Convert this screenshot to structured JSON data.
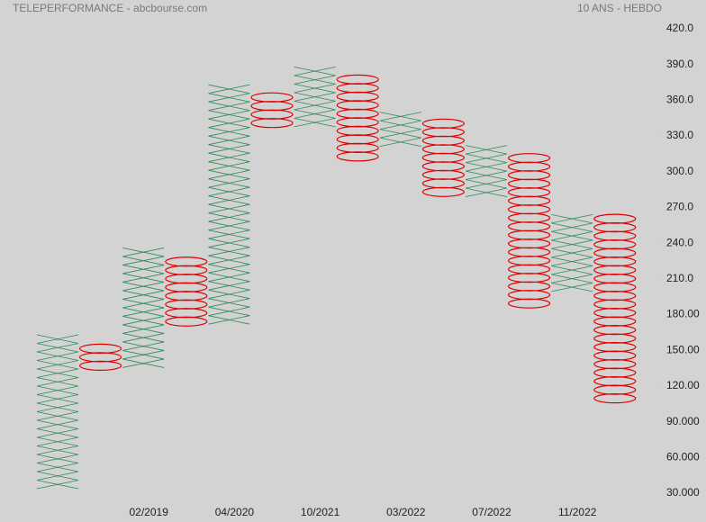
{
  "chart_data": {
    "type": "point-and-figure",
    "title": "TELEPERFORMANCE - abcbourse.com",
    "subtitle": "10 ANS - HEBDO",
    "categories": [
      null,
      null,
      "02/2019",
      null,
      "04/2020",
      null,
      "10/2021",
      null,
      "03/2022",
      null,
      "07/2022",
      null,
      "11/2022",
      null
    ],
    "columns": [
      {
        "kind": "X",
        "low": 33,
        "high": 163
      },
      {
        "kind": "O",
        "low": 128,
        "high": 155
      },
      {
        "kind": "X",
        "low": 134,
        "high": 236
      },
      {
        "kind": "O",
        "low": 164,
        "high": 228
      },
      {
        "kind": "X",
        "low": 171,
        "high": 373
      },
      {
        "kind": "O",
        "low": 331,
        "high": 366
      },
      {
        "kind": "X",
        "low": 338,
        "high": 388
      },
      {
        "kind": "O",
        "low": 309,
        "high": 381
      },
      {
        "kind": "X",
        "low": 316,
        "high": 350
      },
      {
        "kind": "O",
        "low": 273,
        "high": 344
      },
      {
        "kind": "X",
        "low": 279,
        "high": 322
      },
      {
        "kind": "O",
        "low": 186,
        "high": 315
      },
      {
        "kind": "X",
        "low": 193,
        "high": 264
      },
      {
        "kind": "O",
        "low": 106,
        "high": 264
      }
    ],
    "x_color": "#2e8b57",
    "o_color": "#e00000",
    "ylim": [
      30,
      420
    ],
    "yticks": [
      {
        "value": 30,
        "label": "30.000"
      },
      {
        "value": 60,
        "label": "60.000"
      },
      {
        "value": 90,
        "label": "90.000"
      },
      {
        "value": 120,
        "label": "120.00"
      },
      {
        "value": 150,
        "label": "150.00"
      },
      {
        "value": 180,
        "label": "180.00"
      },
      {
        "value": 210,
        "label": "210.0"
      },
      {
        "value": 240,
        "label": "240.0"
      },
      {
        "value": 270,
        "label": "270.0"
      },
      {
        "value": 300,
        "label": "300.0"
      },
      {
        "value": 330,
        "label": "330.0"
      },
      {
        "value": 360,
        "label": "360.0"
      },
      {
        "value": 390,
        "label": "390.0"
      },
      {
        "value": 420,
        "label": "420.0"
      }
    ]
  }
}
